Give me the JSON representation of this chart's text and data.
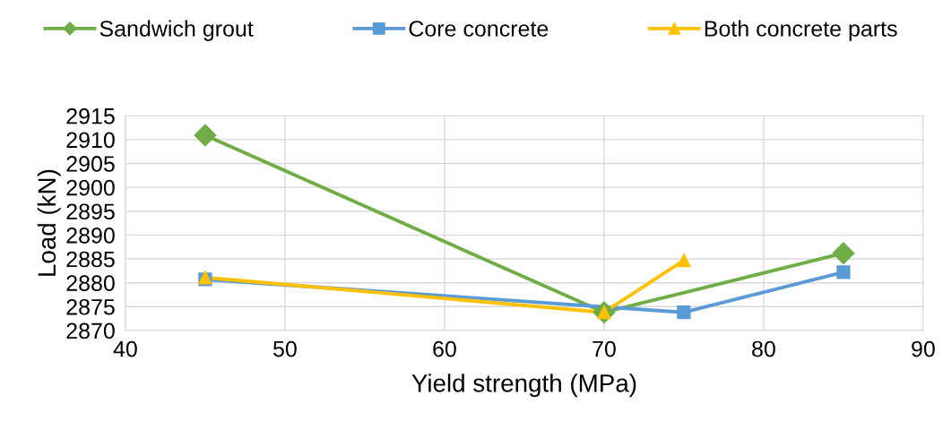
{
  "chart_data": {
    "type": "line",
    "xlabel": "Yield strength (MPa)",
    "ylabel": "Load (kN)",
    "xlim": [
      40,
      90
    ],
    "xticks": [
      40,
      50,
      60,
      70,
      80,
      90
    ],
    "ylim": [
      2870,
      2915
    ],
    "yticks": [
      2870,
      2875,
      2880,
      2885,
      2890,
      2895,
      2900,
      2905,
      2910,
      2915
    ],
    "grid": true,
    "legend": "top",
    "line_style": "solid",
    "series": [
      {
        "name": "Sandwich grout",
        "color": "#70ad47",
        "marker": "diamond",
        "x": [
          45,
          70,
          85
        ],
        "values": [
          2910.9,
          2873.8,
          2886.2
        ]
      },
      {
        "name": "Core concrete",
        "color": "#5b9bd5",
        "marker": "square",
        "x": [
          45,
          75,
          85
        ],
        "values": [
          2880.7,
          2873.8,
          2882.2
        ]
      },
      {
        "name": "Both concrete parts",
        "color": "#ffc000",
        "marker": "triangle",
        "x": [
          45,
          70,
          75
        ],
        "values": [
          2881.1,
          2873.8,
          2884.7
        ]
      }
    ]
  }
}
